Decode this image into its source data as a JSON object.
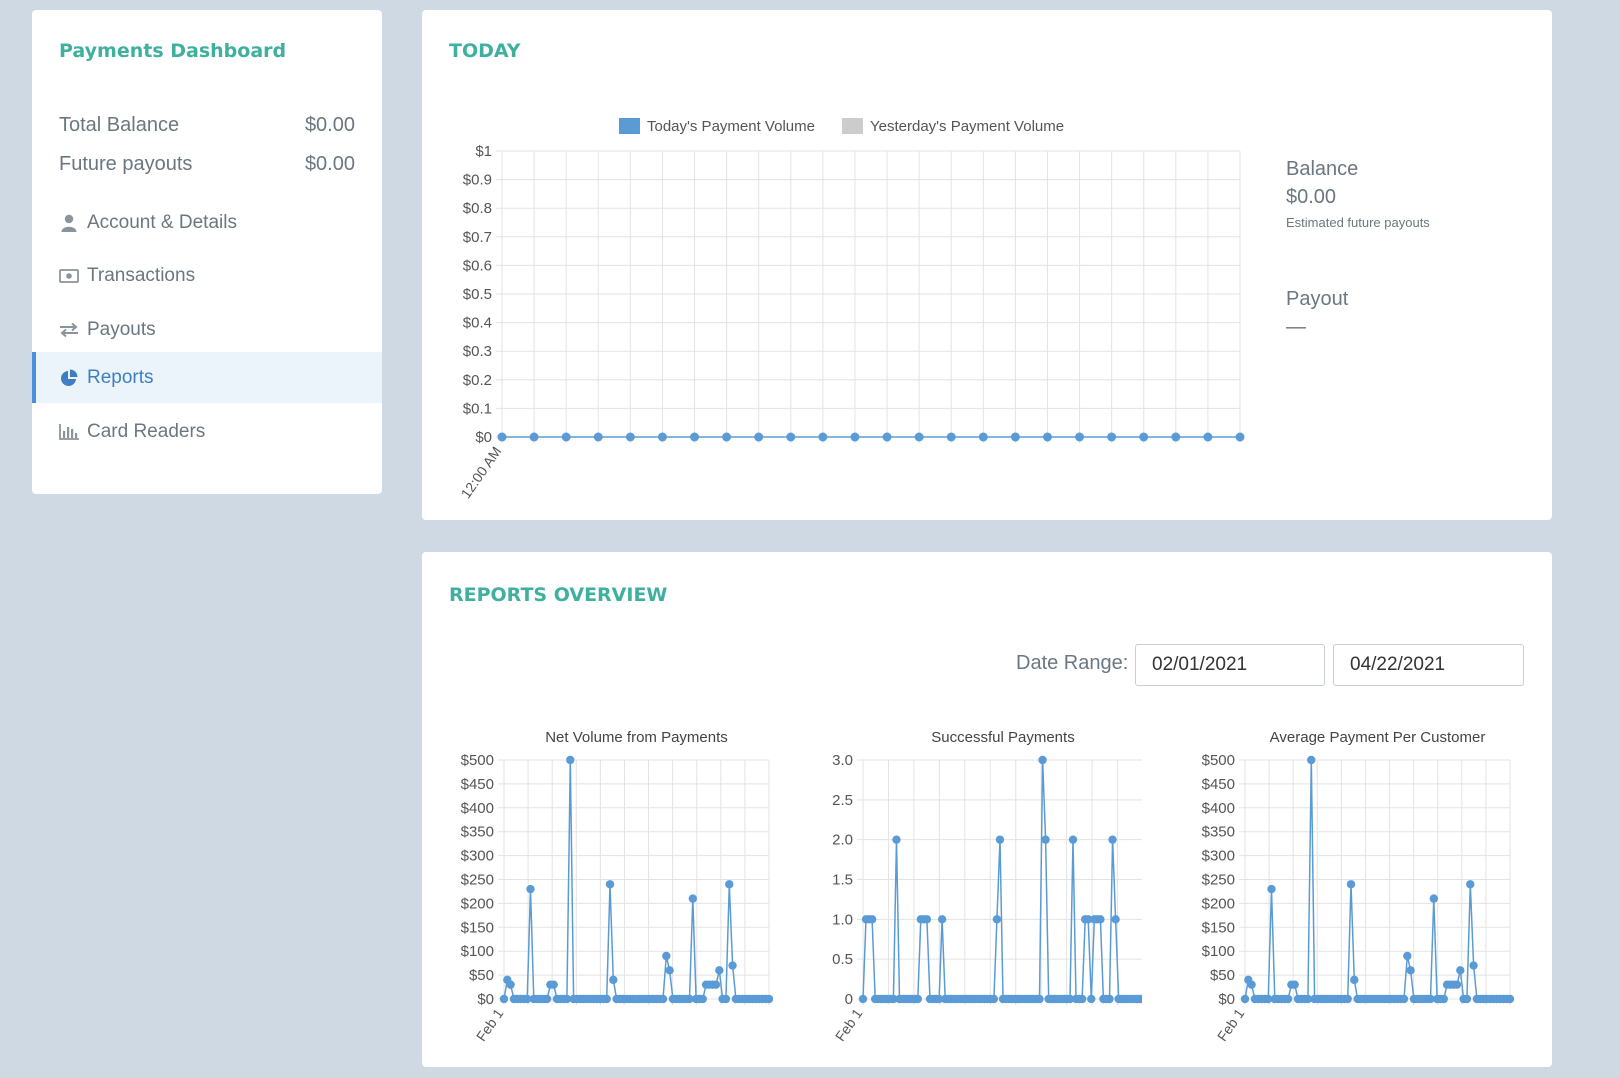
{
  "sidebar": {
    "title": "Payments Dashboard",
    "balances": [
      {
        "label": "Total Balance",
        "value": "$0.00"
      },
      {
        "label": "Future payouts",
        "value": "$0.00"
      }
    ],
    "nav": [
      {
        "label": "Account & Details",
        "icon": "user-icon"
      },
      {
        "label": "Transactions",
        "icon": "money-icon"
      },
      {
        "label": "Payouts",
        "icon": "transfer-icon"
      },
      {
        "label": "Reports",
        "icon": "pie-chart-icon",
        "active": true
      },
      {
        "label": "Card Readers",
        "icon": "bar-chart-icon"
      }
    ]
  },
  "today": {
    "title": "TODAY",
    "balance_label": "Balance",
    "balance_value": "$0.00",
    "balance_sub": "Estimated future payouts",
    "payout_label": "Payout",
    "payout_value": "—"
  },
  "reports": {
    "title": "REPORTS OVERVIEW",
    "date_range_label": "Date Range:",
    "start_date": "02/01/2021",
    "end_date": "04/22/2021"
  },
  "colors": {
    "accent": "#3fb09e",
    "series": "#5b9bd5",
    "series_grey": "#cccccc"
  },
  "chart_data": [
    {
      "type": "line",
      "legend": [
        "Today's Payment Volume",
        "Yesterday's Payment Volume"
      ],
      "legend_position": "top",
      "ylim": [
        0,
        1
      ],
      "yticks": [
        "$1",
        "$0.9",
        "$0.8",
        "$0.7",
        "$0.6",
        "$0.5",
        "$0.4",
        "$0.3",
        "$0.2",
        "$0.1",
        "$0"
      ],
      "x_first_label": "12:00 AM",
      "series": [
        {
          "name": "Today's Payment Volume",
          "values": [
            0,
            0,
            0,
            0,
            0,
            0,
            0,
            0,
            0,
            0,
            0,
            0,
            0,
            0,
            0,
            0,
            0,
            0,
            0,
            0,
            0,
            0,
            0,
            0
          ]
        }
      ],
      "grid": true
    },
    {
      "type": "line",
      "title": "Net Volume from Payments",
      "ylim": [
        0,
        500
      ],
      "yticks": [
        "$500",
        "$450",
        "$400",
        "$350",
        "$300",
        "$250",
        "$200",
        "$150",
        "$100",
        "$50",
        "$0"
      ],
      "x_first_label": "Feb 1",
      "values": [
        0,
        40,
        30,
        0,
        0,
        0,
        0,
        0,
        230,
        0,
        0,
        0,
        0,
        0,
        30,
        30,
        0,
        0,
        0,
        0,
        500,
        0,
        0,
        0,
        0,
        0,
        0,
        0,
        0,
        0,
        0,
        0,
        240,
        40,
        0,
        0,
        0,
        0,
        0,
        0,
        0,
        0,
        0,
        0,
        0,
        0,
        0,
        0,
        0,
        90,
        60,
        0,
        0,
        0,
        0,
        0,
        0,
        210,
        0,
        0,
        0,
        30,
        30,
        30,
        30,
        60,
        0,
        0,
        240,
        70,
        0,
        0,
        0,
        0,
        0,
        0,
        0,
        0,
        0,
        0,
        0
      ],
      "grid": true
    },
    {
      "type": "line",
      "title": "Successful Payments",
      "ylim": [
        0,
        3
      ],
      "yticks": [
        "3.0",
        "2.5",
        "2.0",
        "1.5",
        "1.0",
        "0.5",
        "0"
      ],
      "x_first_label": "Feb 1",
      "values": [
        0,
        1,
        1,
        1,
        0,
        0,
        0,
        0,
        0,
        0,
        0,
        2,
        0,
        0,
        0,
        0,
        0,
        0,
        0,
        1,
        1,
        1,
        0,
        0,
        0,
        0,
        1,
        0,
        0,
        0,
        0,
        0,
        0,
        0,
        0,
        0,
        0,
        0,
        0,
        0,
        0,
        0,
        0,
        0,
        1,
        2,
        0,
        0,
        0,
        0,
        0,
        0,
        0,
        0,
        0,
        0,
        0,
        0,
        0,
        3,
        2,
        0,
        0,
        0,
        0,
        0,
        0,
        0,
        0,
        2,
        0,
        0,
        0,
        1,
        1,
        0,
        1,
        1,
        1,
        0,
        0,
        0,
        2,
        1,
        0,
        0,
        0,
        0,
        0,
        0,
        0,
        0,
        0
      ],
      "grid": true
    },
    {
      "type": "line",
      "title": "Average Payment Per Customer",
      "ylim": [
        0,
        500
      ],
      "yticks": [
        "$500",
        "$450",
        "$400",
        "$350",
        "$300",
        "$250",
        "$200",
        "$150",
        "$100",
        "$50",
        "$0"
      ],
      "x_first_label": "Feb 1",
      "values": [
        0,
        40,
        30,
        0,
        0,
        0,
        0,
        0,
        230,
        0,
        0,
        0,
        0,
        0,
        30,
        30,
        0,
        0,
        0,
        0,
        500,
        0,
        0,
        0,
        0,
        0,
        0,
        0,
        0,
        0,
        0,
        0,
        240,
        40,
        0,
        0,
        0,
        0,
        0,
        0,
        0,
        0,
        0,
        0,
        0,
        0,
        0,
        0,
        0,
        90,
        60,
        0,
        0,
        0,
        0,
        0,
        0,
        210,
        0,
        0,
        0,
        30,
        30,
        30,
        30,
        60,
        0,
        0,
        240,
        70,
        0,
        0,
        0,
        0,
        0,
        0,
        0,
        0,
        0,
        0,
        0
      ],
      "grid": true
    }
  ]
}
